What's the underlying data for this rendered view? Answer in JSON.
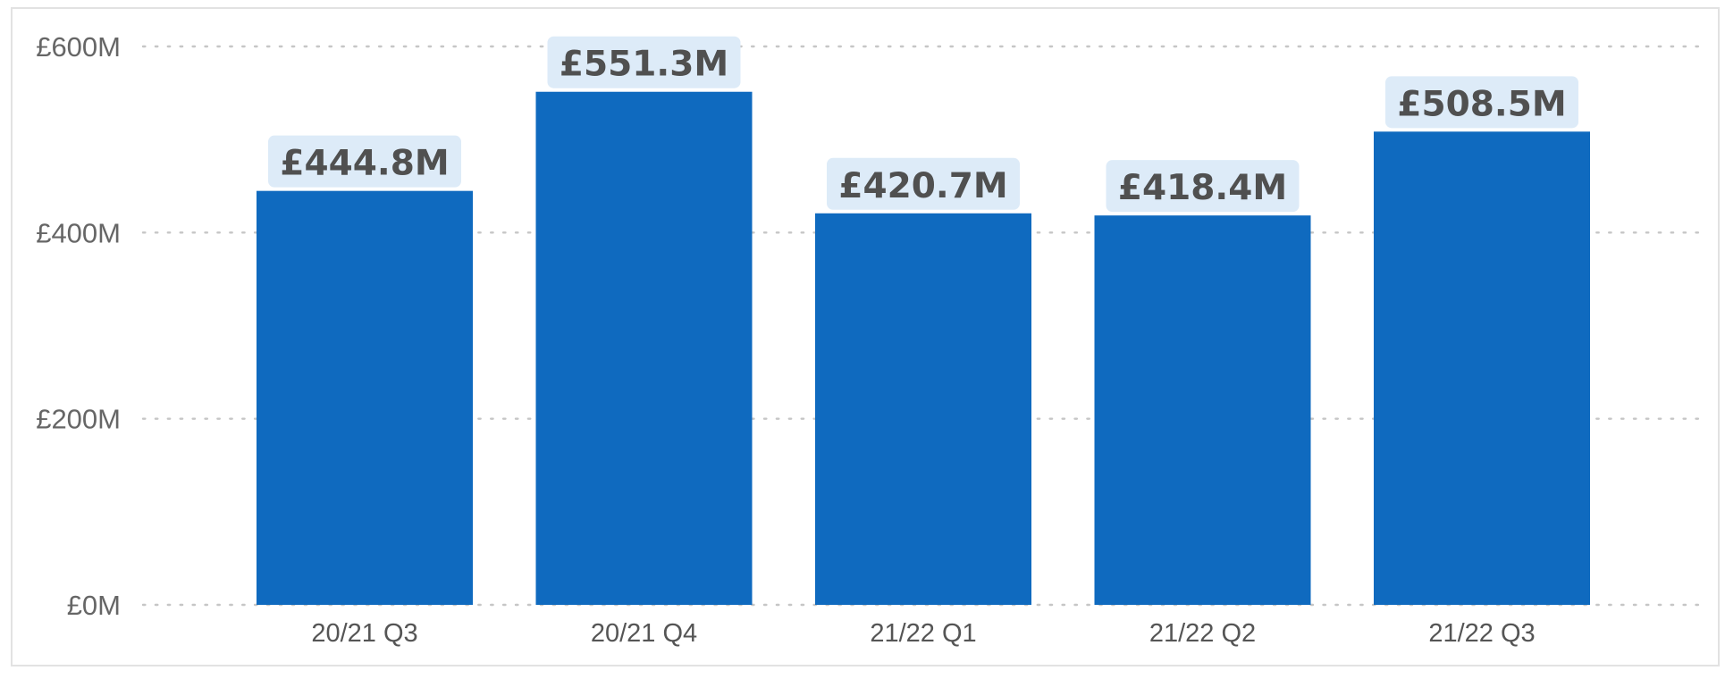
{
  "chart_data": {
    "type": "bar",
    "title": "",
    "xlabel": "",
    "ylabel": "",
    "categories": [
      "20/21 Q3",
      "20/21 Q4",
      "21/22 Q1",
      "21/22 Q2",
      "21/22 Q3"
    ],
    "values": [
      444.8,
      551.3,
      420.7,
      418.4,
      508.5
    ],
    "data_labels": [
      "£444.8M",
      "£551.3M",
      "£420.7M",
      "£418.4M",
      "£508.5M"
    ],
    "ylim": [
      0,
      600
    ],
    "yticks": [
      0,
      200,
      400,
      600
    ],
    "ytick_labels": [
      "£0M",
      "£200M",
      "£400M",
      "£600M"
    ],
    "grid": true,
    "legend": "none",
    "colors": {
      "bar": "#0F6ABF",
      "label_background": "#DDEBF8",
      "label_text": "#505050",
      "axis_text": "#666666",
      "gridline": "#C6C6C6"
    }
  }
}
